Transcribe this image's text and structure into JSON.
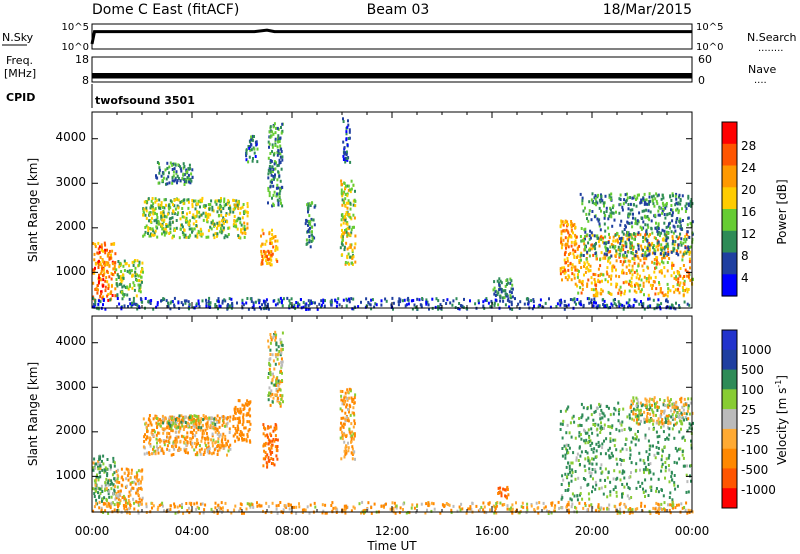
{
  "header": {
    "station": "Dome C East (fitACF)",
    "beam": "Beam 03",
    "date": "18/Mar/2015"
  },
  "colors": {
    "axis": "#000000",
    "background": "#ffffff",
    "power_scale": [
      "#0000ff",
      "#1f3fa0",
      "#2e8b57",
      "#66cc33",
      "#ffcc00",
      "#ff9900",
      "#ff5500",
      "#ff0000"
    ],
    "velocity_scale": [
      "#ff0000",
      "#ff5500",
      "#ff8800",
      "#ffaa33",
      "#bbbbbb",
      "#88cc33",
      "#2e8b57",
      "#1f3fa0",
      "#2233cc"
    ]
  },
  "chart_data": [
    {
      "type": "line",
      "panel": "noise",
      "left_label": "N.Sky",
      "right_label": "N.Search",
      "right_marker": "........",
      "left_ticks": [
        "10^5",
        "10^0"
      ],
      "right_ticks": [
        "10^5",
        "10^0"
      ],
      "ylim": [
        1,
        100000
      ],
      "y_scale": "log",
      "xlim": [
        0,
        24
      ],
      "series": [
        {
          "x": [
            0.0,
            0.1,
            0.3,
            6.5,
            7.0,
            7.3,
            24.0
          ],
          "y": [
            10,
            3000,
            3000,
            3000,
            6000,
            3000,
            3000
          ]
        }
      ]
    },
    {
      "type": "line",
      "panel": "frequency",
      "left_label_1": "Freq.",
      "left_label_2": "[MHz]",
      "right_label": "Nave",
      "right_marker": "....",
      "left_ticks": [
        "18",
        "8"
      ],
      "right_ticks": [
        "60",
        "0"
      ],
      "ylim": [
        8,
        18
      ],
      "xlim": [
        0,
        24
      ],
      "series": [
        {
          "x": [
            0,
            24
          ],
          "y": [
            10,
            10
          ]
        },
        {
          "x": [
            0,
            24
          ],
          "y": [
            11,
            11
          ]
        }
      ]
    },
    {
      "type": "table",
      "panel": "cpid",
      "left_label": "CPID",
      "program": "twofsound 3501"
    },
    {
      "type": "heatmap",
      "panel": "power",
      "ylabel": "Slant Range [km]",
      "y_ticks": [
        "4000",
        "3000",
        "2000",
        "1000"
      ],
      "ylim": [
        200,
        4600
      ],
      "xlim": [
        0,
        24
      ],
      "colorbar_label": "Power [dB]",
      "colorbar_ticks": [
        "28",
        "24",
        "20",
        "16",
        "12",
        "8",
        "4"
      ],
      "colorbar_range": [
        0,
        32
      ],
      "regions": [
        {
          "t": [
            0.0,
            0.9
          ],
          "r": [
            400,
            1700
          ],
          "level": 24
        },
        {
          "t": [
            0.9,
            2.0
          ],
          "r": [
            500,
            1300
          ],
          "level": 14
        },
        {
          "t": [
            2.0,
            5.5
          ],
          "r": [
            1800,
            2700
          ],
          "level": 14
        },
        {
          "t": [
            2.5,
            4.0
          ],
          "r": [
            3000,
            3500
          ],
          "level": 10
        },
        {
          "t": [
            5.6,
            6.2
          ],
          "r": [
            1800,
            2700
          ],
          "level": 16
        },
        {
          "t": [
            6.1,
            6.6
          ],
          "r": [
            3500,
            4100
          ],
          "level": 8
        },
        {
          "t": [
            6.7,
            7.4
          ],
          "r": [
            1200,
            2000
          ],
          "level": 22
        },
        {
          "t": [
            7.0,
            7.6
          ],
          "r": [
            2500,
            4400
          ],
          "level": 10
        },
        {
          "t": [
            8.5,
            8.9
          ],
          "r": [
            1600,
            2600
          ],
          "level": 10
        },
        {
          "t": [
            9.9,
            10.5
          ],
          "r": [
            1200,
            3100
          ],
          "level": 16
        },
        {
          "t": [
            10.0,
            10.3
          ],
          "r": [
            3500,
            4500
          ],
          "level": 6
        },
        {
          "t": [
            16.0,
            16.8
          ],
          "r": [
            300,
            900
          ],
          "level": 10
        },
        {
          "t": [
            18.7,
            19.3
          ],
          "r": [
            800,
            2200
          ],
          "level": 22
        },
        {
          "t": [
            19.3,
            24.0
          ],
          "r": [
            500,
            1900
          ],
          "level": 20
        },
        {
          "t": [
            19.5,
            24.0
          ],
          "r": [
            1400,
            2800
          ],
          "level": 10
        },
        {
          "t": [
            0.0,
            24.0
          ],
          "r": [
            200,
            450
          ],
          "level": 6
        }
      ]
    },
    {
      "type": "heatmap",
      "panel": "velocity",
      "ylabel": "Slant Range [km]",
      "y_ticks": [
        "4000",
        "3000",
        "2000",
        "1000"
      ],
      "ylim": [
        200,
        4600
      ],
      "xlim": [
        0,
        24
      ],
      "xlabel": "Time UT",
      "x_ticks": [
        "00:00",
        "04:00",
        "08:00",
        "12:00",
        "16:00",
        "20:00",
        "00:00"
      ],
      "colorbar_label": "Velocity [m s",
      "colorbar_unit_sup": "-1",
      "colorbar_unit_end": "]",
      "colorbar_ticks": [
        "1000",
        "500",
        "100",
        "25",
        "-25",
        "-100",
        "-500",
        "-1000"
      ],
      "regions": [
        {
          "t": [
            0.0,
            0.9
          ],
          "r": [
            400,
            1500
          ],
          "vel": 100
        },
        {
          "t": [
            0.9,
            2.0
          ],
          "r": [
            400,
            1200
          ],
          "vel": -100
        },
        {
          "t": [
            2.0,
            5.5
          ],
          "r": [
            1500,
            2400
          ],
          "vel": -100
        },
        {
          "t": [
            2.5,
            5.0
          ],
          "r": [
            2100,
            2400
          ],
          "vel": 0
        },
        {
          "t": [
            5.6,
            6.3
          ],
          "r": [
            1800,
            2800
          ],
          "vel": -300
        },
        {
          "t": [
            6.8,
            7.4
          ],
          "r": [
            1200,
            2200
          ],
          "vel": -500
        },
        {
          "t": [
            7.0,
            7.6
          ],
          "r": [
            2600,
            4300
          ],
          "vel": 0
        },
        {
          "t": [
            9.9,
            10.5
          ],
          "r": [
            1400,
            3000
          ],
          "vel": -100
        },
        {
          "t": [
            16.2,
            16.7
          ],
          "r": [
            500,
            800
          ],
          "vel": -500
        },
        {
          "t": [
            18.7,
            24.0
          ],
          "r": [
            500,
            2700
          ],
          "vel": 150
        },
        {
          "t": [
            21.5,
            24.0
          ],
          "r": [
            2200,
            2800
          ],
          "vel": 0
        },
        {
          "t": [
            0.0,
            24.0
          ],
          "r": [
            200,
            450
          ],
          "vel": -80
        }
      ]
    }
  ]
}
